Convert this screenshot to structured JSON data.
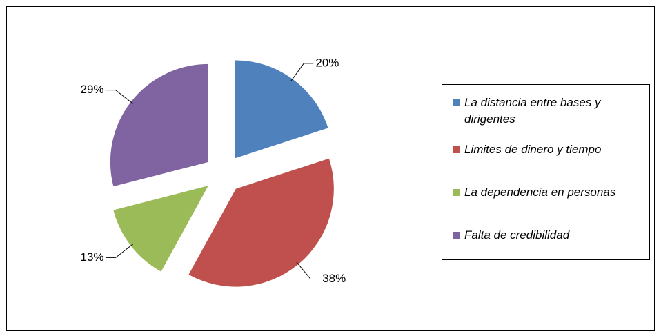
{
  "chart_data": {
    "type": "pie",
    "categories": [
      "La distancia entre bases y dirigentes",
      "Limites de dinero y tiempo",
      "La dependencia en personas",
      "Falta de credibilidad"
    ],
    "values": [
      20,
      38,
      13,
      29
    ],
    "value_labels": [
      "20%",
      "38%",
      "13%",
      "29%"
    ],
    "colors": [
      "#4f81bd",
      "#c0504d",
      "#9bbb59",
      "#8064a2"
    ],
    "exploded": true,
    "legend": "right"
  }
}
